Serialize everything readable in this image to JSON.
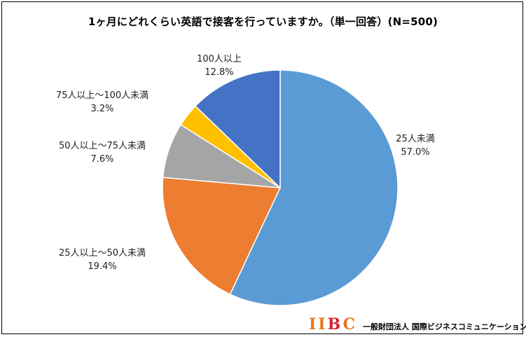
{
  "chart_data": {
    "type": "pie",
    "title": "1ヶ月にどれくらい英語で接客を行っていますか。（単一回答）(N=500)",
    "categories": [
      "25人未満",
      "25人以上～50人未満",
      "50人以上～75人未満",
      "75人以上～100人未満",
      "100人以上"
    ],
    "values": [
      57.0,
      19.4,
      7.6,
      3.2,
      12.8
    ],
    "value_labels": [
      "57.0%",
      "19.4%",
      "7.6%",
      "3.2%",
      "12.8%"
    ],
    "colors": [
      "#5b9bd5",
      "#ed7d31",
      "#a5a5a5",
      "#ffc000",
      "#4472c4"
    ],
    "start_angle": "12 o'clock, clockwise",
    "legend": "none (category labels outside slices)"
  },
  "branding": {
    "logo_letters": [
      "I",
      "I",
      "B",
      "C"
    ],
    "org_name": "一般財団法人 国際ビジネスコミュニケーション協会"
  }
}
